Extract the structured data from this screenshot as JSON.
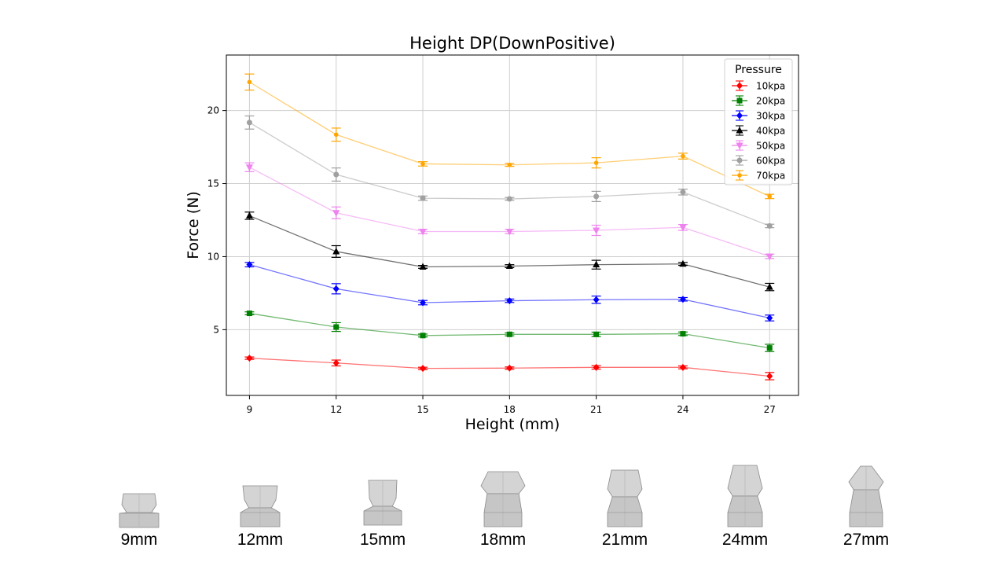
{
  "chart_data": {
    "type": "line",
    "title": "Height DP(DownPositive)",
    "xlabel": "Height (mm)",
    "ylabel": "Force (N)",
    "x": [
      9,
      12,
      15,
      18,
      21,
      24,
      27
    ],
    "xticks": [
      "9",
      "12",
      "15",
      "18",
      "21",
      "24",
      "27"
    ],
    "yticks": [
      5,
      10,
      15,
      20
    ],
    "ylim": [
      0.5,
      23.8
    ],
    "xlim": [
      8.2,
      28.0
    ],
    "grid": true,
    "legend": {
      "title": "Pressure",
      "placement": "top-right"
    },
    "series": [
      {
        "name": "10kpa",
        "color": "#ff0000",
        "marker": "diamond",
        "values": [
          3.05,
          2.72,
          2.35,
          2.37,
          2.42,
          2.42,
          1.82
        ],
        "errors": [
          0.08,
          0.2,
          0.08,
          0.08,
          0.12,
          0.1,
          0.25
        ]
      },
      {
        "name": "20kpa",
        "color": "#008000",
        "marker": "square",
        "values": [
          6.12,
          5.18,
          4.6,
          4.68,
          4.68,
          4.72,
          3.75
        ],
        "errors": [
          0.1,
          0.3,
          0.1,
          0.1,
          0.15,
          0.12,
          0.25
        ]
      },
      {
        "name": "30kpa",
        "color": "#0000ff",
        "marker": "diamond",
        "values": [
          9.45,
          7.8,
          6.85,
          6.98,
          7.05,
          7.08,
          5.8
        ],
        "errors": [
          0.15,
          0.35,
          0.15,
          0.12,
          0.25,
          0.12,
          0.2
        ]
      },
      {
        "name": "40kpa",
        "color": "#000000",
        "marker": "triangle-up",
        "values": [
          12.8,
          10.35,
          9.3,
          9.35,
          9.45,
          9.5,
          7.92
        ],
        "errors": [
          0.25,
          0.4,
          0.1,
          0.1,
          0.3,
          0.1,
          0.25
        ]
      },
      {
        "name": "50kpa",
        "color": "#ee82ee",
        "marker": "triangle-down",
        "values": [
          16.12,
          13.0,
          11.72,
          11.72,
          11.8,
          12.0,
          10.02
        ],
        "errors": [
          0.3,
          0.4,
          0.15,
          0.15,
          0.35,
          0.2,
          0.15
        ]
      },
      {
        "name": "60kpa",
        "color": "#a0a0a0",
        "marker": "circle",
        "values": [
          19.18,
          15.62,
          14.0,
          13.95,
          14.12,
          14.42,
          12.1
        ],
        "errors": [
          0.45,
          0.45,
          0.15,
          0.1,
          0.35,
          0.2,
          0.12
        ]
      },
      {
        "name": "70kpa",
        "color": "#ffa500",
        "marker": "circle-small",
        "values": [
          21.95,
          18.35,
          16.35,
          16.28,
          16.42,
          16.88,
          14.12
        ],
        "errors": [
          0.55,
          0.45,
          0.15,
          0.1,
          0.35,
          0.2,
          0.15
        ]
      }
    ]
  },
  "captions": [
    "9mm",
    "12mm",
    "15mm",
    "18mm",
    "21mm",
    "24mm",
    "27mm"
  ]
}
